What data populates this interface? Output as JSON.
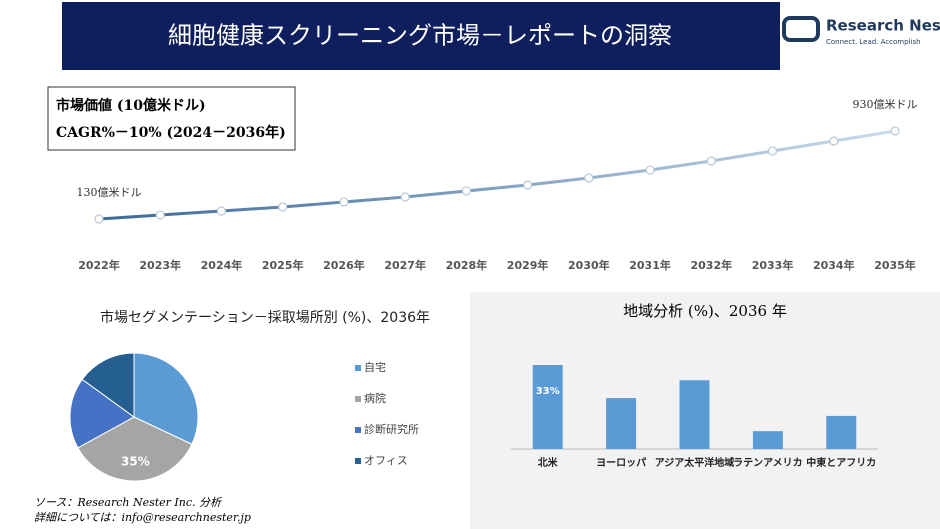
{
  "header": {
    "title": "細胞健康スクリーニング市場－レポートの洞察",
    "logo_name": "Research Nester",
    "logo_tagline": "Connect. Lead. Accomplish"
  },
  "chart_data": [
    {
      "type": "line",
      "annotations": [
        "市場価値 (10億米ドル)",
        "CAGR%－10% (2024－2036年)"
      ],
      "categories": [
        "2022年",
        "2023年",
        "2024年",
        "2025年",
        "2026年",
        "2027年",
        "2028年",
        "2029年",
        "2030年",
        "2031年",
        "2032年",
        "2033年",
        "2034年",
        "2035年"
      ],
      "values": [
        130,
        166,
        203,
        239,
        285,
        330,
        385,
        439,
        503,
        575,
        657,
        748,
        839,
        930
      ],
      "value_labels": [
        "130億米ドル",
        null,
        null,
        null,
        null,
        null,
        null,
        null,
        null,
        null,
        null,
        null,
        null,
        "930億米ドル"
      ],
      "colors": [
        "#3d6a99",
        "#c9dbec"
      ]
    },
    {
      "type": "pie",
      "title": "市場セグメンテーション－採取場所別 (%)、2036年",
      "categories": [
        "自宅",
        "病院",
        "診断研究所",
        "オフィス"
      ],
      "values": [
        32,
        35,
        18,
        15
      ],
      "value_labels": [
        null,
        "35%",
        null,
        null
      ],
      "colors": [
        "#5b9bd5",
        "#a5a5a5",
        "#4472c4",
        "#255e91"
      ]
    },
    {
      "type": "bar",
      "title": "地域分析 (%)、2036 年",
      "categories": [
        "北米",
        "ヨーロッパ",
        "アジア太平洋地域",
        "ラテンアメリカ",
        "中東とアフリカ"
      ],
      "values": [
        33,
        20,
        27,
        7,
        13
      ],
      "value_labels": [
        "33%",
        null,
        null,
        null,
        null
      ],
      "color": "#5b9bd5"
    }
  ],
  "source": [
    "ソース：Research Nester Inc. 分析",
    "詳細については：info@researchnester.jp"
  ]
}
